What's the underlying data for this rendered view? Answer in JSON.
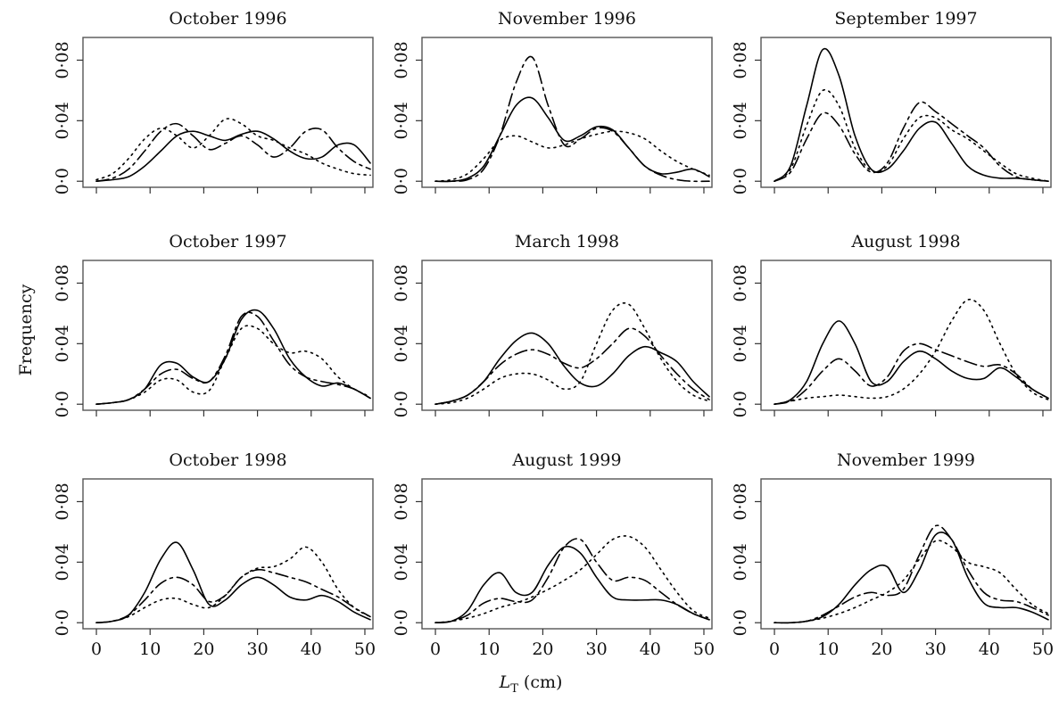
{
  "chart_data": [
    {
      "type": "line",
      "title": "October 1996",
      "x": [
        0,
        3,
        6,
        9,
        12,
        15,
        18,
        21,
        24,
        27,
        30,
        33,
        36,
        39,
        42,
        45,
        48,
        51
      ],
      "xlim": [
        -2.5,
        51.5
      ],
      "ylim": [
        -0.004,
        0.095
      ],
      "yticks": [
        {
          "value": 0,
          "label": "0·0"
        },
        {
          "value": 0.04,
          "label": "0·04"
        },
        {
          "value": 0.08,
          "label": "0·08"
        }
      ],
      "series": [
        {
          "color": "#000",
          "dash": "solid",
          "values": [
            0,
            0.001,
            0.003,
            0.01,
            0.02,
            0.03,
            0.033,
            0.03,
            0.027,
            0.031,
            0.033,
            0.028,
            0.02,
            0.015,
            0.016,
            0.024,
            0.024,
            0.012
          ]
        },
        {
          "color": "#000",
          "dash": "dashed",
          "values": [
            0,
            0.002,
            0.008,
            0.02,
            0.033,
            0.038,
            0.03,
            0.021,
            0.025,
            0.03,
            0.024,
            0.016,
            0.022,
            0.033,
            0.034,
            0.022,
            0.013,
            0.008
          ]
        },
        {
          "color": "#000",
          "dash": "dotted",
          "values": [
            0.001,
            0.005,
            0.015,
            0.028,
            0.035,
            0.03,
            0.022,
            0.03,
            0.041,
            0.038,
            0.03,
            0.027,
            0.022,
            0.018,
            0.012,
            0.008,
            0.005,
            0.004
          ]
        }
      ]
    },
    {
      "type": "line",
      "title": "November 1996",
      "x": [
        0,
        3,
        6,
        9,
        12,
        15,
        18,
        21,
        24,
        27,
        30,
        33,
        36,
        39,
        42,
        45,
        48,
        51
      ],
      "xlim": [
        -2.5,
        51.5
      ],
      "ylim": [
        -0.004,
        0.095
      ],
      "yticks": [
        {
          "value": 0,
          "label": "0·0"
        },
        {
          "value": 0.04,
          "label": "0·04"
        },
        {
          "value": 0.08,
          "label": "0·08"
        }
      ],
      "series": [
        {
          "color": "#000",
          "dash": "solid",
          "values": [
            0,
            0,
            0.002,
            0.01,
            0.03,
            0.05,
            0.055,
            0.042,
            0.027,
            0.03,
            0.036,
            0.034,
            0.022,
            0.01,
            0.005,
            0.006,
            0.008,
            0.003
          ]
        },
        {
          "color": "#000",
          "dash": "dashed",
          "values": [
            0,
            0,
            0.001,
            0.008,
            0.03,
            0.065,
            0.082,
            0.05,
            0.024,
            0.028,
            0.035,
            0.033,
            0.022,
            0.01,
            0.004,
            0.001,
            0,
            0
          ]
        },
        {
          "color": "#000",
          "dash": "dotted",
          "values": [
            0,
            0.001,
            0.005,
            0.015,
            0.027,
            0.03,
            0.026,
            0.022,
            0.024,
            0.028,
            0.031,
            0.033,
            0.032,
            0.028,
            0.02,
            0.013,
            0.008,
            0.004
          ]
        }
      ]
    },
    {
      "type": "line",
      "title": "September 1997",
      "x": [
        0,
        3,
        6,
        9,
        12,
        15,
        18,
        21,
        24,
        27,
        30,
        33,
        36,
        39,
        42,
        45,
        48,
        51
      ],
      "xlim": [
        -2.5,
        51.5
      ],
      "ylim": [
        -0.004,
        0.095
      ],
      "yticks": [
        {
          "value": 0,
          "label": "0·0"
        },
        {
          "value": 0.04,
          "label": "0·04"
        },
        {
          "value": 0.08,
          "label": "0·08"
        }
      ],
      "series": [
        {
          "color": "#000",
          "dash": "solid",
          "values": [
            0,
            0.01,
            0.05,
            0.087,
            0.07,
            0.03,
            0.008,
            0.008,
            0.02,
            0.035,
            0.039,
            0.025,
            0.01,
            0.004,
            0.002,
            0.002,
            0.001,
            0
          ]
        },
        {
          "color": "#000",
          "dash": "dashed",
          "values": [
            0,
            0.006,
            0.028,
            0.045,
            0.037,
            0.018,
            0.006,
            0.012,
            0.035,
            0.052,
            0.046,
            0.038,
            0.03,
            0.022,
            0.01,
            0.003,
            0.001,
            0
          ]
        },
        {
          "color": "#000",
          "dash": "dotted",
          "values": [
            0,
            0.008,
            0.037,
            0.06,
            0.05,
            0.022,
            0.007,
            0.01,
            0.028,
            0.042,
            0.042,
            0.034,
            0.028,
            0.02,
            0.012,
            0.005,
            0.002,
            0
          ]
        }
      ]
    },
    {
      "type": "line",
      "title": "October 1997",
      "x": [
        0,
        3,
        6,
        9,
        12,
        15,
        18,
        21,
        24,
        27,
        30,
        33,
        36,
        39,
        42,
        45,
        48,
        51
      ],
      "xlim": [
        -2.5,
        51.5
      ],
      "ylim": [
        -0.004,
        0.095
      ],
      "yticks": [
        {
          "value": 0,
          "label": "0·0"
        },
        {
          "value": 0.04,
          "label": "0·04"
        },
        {
          "value": 0.08,
          "label": "0·08"
        }
      ],
      "series": [
        {
          "color": "#000",
          "dash": "solid",
          "values": [
            0,
            0.001,
            0.003,
            0.01,
            0.026,
            0.027,
            0.018,
            0.015,
            0.03,
            0.056,
            0.062,
            0.05,
            0.03,
            0.018,
            0.012,
            0.014,
            0.01,
            0.004
          ]
        },
        {
          "color": "#000",
          "dash": "dashed",
          "values": [
            0,
            0.001,
            0.003,
            0.01,
            0.02,
            0.023,
            0.017,
            0.015,
            0.032,
            0.058,
            0.058,
            0.042,
            0.026,
            0.018,
            0.015,
            0.013,
            0.01,
            0.004
          ]
        },
        {
          "color": "#000",
          "dash": "dotted",
          "values": [
            0,
            0.001,
            0.003,
            0.008,
            0.016,
            0.016,
            0.008,
            0.009,
            0.03,
            0.05,
            0.05,
            0.04,
            0.034,
            0.035,
            0.03,
            0.018,
            0.01,
            0.005
          ]
        }
      ]
    },
    {
      "type": "line",
      "title": "March 1998",
      "x": [
        0,
        3,
        6,
        9,
        12,
        15,
        18,
        21,
        24,
        27,
        30,
        33,
        36,
        39,
        42,
        45,
        48,
        51
      ],
      "xlim": [
        -2.5,
        51.5
      ],
      "ylim": [
        -0.004,
        0.095
      ],
      "yticks": [
        {
          "value": 0,
          "label": "0·0"
        },
        {
          "value": 0.04,
          "label": "0·04"
        },
        {
          "value": 0.08,
          "label": "0·08"
        }
      ],
      "series": [
        {
          "color": "#000",
          "dash": "solid",
          "values": [
            0,
            0.002,
            0.006,
            0.015,
            0.03,
            0.042,
            0.047,
            0.04,
            0.025,
            0.014,
            0.012,
            0.02,
            0.032,
            0.038,
            0.034,
            0.028,
            0.015,
            0.005
          ]
        },
        {
          "color": "#000",
          "dash": "dashed",
          "values": [
            0,
            0.002,
            0.006,
            0.015,
            0.026,
            0.033,
            0.036,
            0.033,
            0.027,
            0.024,
            0.03,
            0.04,
            0.05,
            0.045,
            0.032,
            0.02,
            0.01,
            0.003
          ]
        },
        {
          "color": "#000",
          "dash": "dotted",
          "values": [
            0,
            0.001,
            0.004,
            0.01,
            0.017,
            0.02,
            0.02,
            0.016,
            0.01,
            0.015,
            0.04,
            0.062,
            0.066,
            0.05,
            0.03,
            0.015,
            0.006,
            0.002
          ]
        }
      ]
    },
    {
      "type": "line",
      "title": "August 1998",
      "x": [
        0,
        3,
        6,
        9,
        12,
        15,
        18,
        21,
        24,
        27,
        30,
        33,
        36,
        39,
        42,
        45,
        48,
        51
      ],
      "xlim": [
        -2.5,
        51.5
      ],
      "ylim": [
        -0.004,
        0.095
      ],
      "yticks": [
        {
          "value": 0,
          "label": "0·0"
        },
        {
          "value": 0.04,
          "label": "0·04"
        },
        {
          "value": 0.08,
          "label": "0·08"
        }
      ],
      "series": [
        {
          "color": "#000",
          "dash": "solid",
          "values": [
            0,
            0.003,
            0.015,
            0.04,
            0.055,
            0.04,
            0.015,
            0.015,
            0.028,
            0.035,
            0.03,
            0.022,
            0.017,
            0.017,
            0.024,
            0.018,
            0.01,
            0.004
          ]
        },
        {
          "color": "#000",
          "dash": "dashed",
          "values": [
            0,
            0.002,
            0.01,
            0.022,
            0.03,
            0.022,
            0.012,
            0.018,
            0.035,
            0.04,
            0.036,
            0.032,
            0.028,
            0.025,
            0.026,
            0.02,
            0.01,
            0.004
          ]
        },
        {
          "color": "#000",
          "dash": "dotted",
          "values": [
            0,
            0.002,
            0.004,
            0.005,
            0.006,
            0.005,
            0.004,
            0.005,
            0.01,
            0.02,
            0.035,
            0.055,
            0.069,
            0.062,
            0.04,
            0.02,
            0.008,
            0.003
          ]
        }
      ]
    },
    {
      "type": "line",
      "title": "October 1998",
      "x": [
        0,
        3,
        6,
        9,
        12,
        15,
        18,
        21,
        24,
        27,
        30,
        33,
        36,
        39,
        42,
        45,
        48,
        51
      ],
      "xlim": [
        -2.5,
        51.5
      ],
      "ylim": [
        -0.004,
        0.095
      ],
      "xticks": [
        0,
        10,
        20,
        30,
        40,
        50
      ],
      "yticks": [
        {
          "value": 0,
          "label": "0·0"
        },
        {
          "value": 0.04,
          "label": "0·04"
        },
        {
          "value": 0.08,
          "label": "0·08"
        }
      ],
      "series": [
        {
          "color": "#000",
          "dash": "solid",
          "values": [
            0,
            0.001,
            0.005,
            0.02,
            0.042,
            0.053,
            0.035,
            0.012,
            0.015,
            0.025,
            0.03,
            0.025,
            0.017,
            0.015,
            0.018,
            0.014,
            0.007,
            0.002
          ]
        },
        {
          "color": "#000",
          "dash": "dashed",
          "values": [
            0,
            0.001,
            0.005,
            0.015,
            0.026,
            0.03,
            0.025,
            0.014,
            0.018,
            0.03,
            0.035,
            0.033,
            0.03,
            0.027,
            0.022,
            0.017,
            0.01,
            0.004
          ]
        },
        {
          "color": "#000",
          "dash": "dotted",
          "values": [
            0,
            0.001,
            0.004,
            0.01,
            0.015,
            0.016,
            0.012,
            0.01,
            0.018,
            0.03,
            0.036,
            0.037,
            0.042,
            0.05,
            0.04,
            0.022,
            0.01,
            0.004
          ]
        }
      ]
    },
    {
      "type": "line",
      "title": "August 1999",
      "x": [
        0,
        3,
        6,
        9,
        12,
        15,
        18,
        21,
        24,
        27,
        30,
        33,
        36,
        39,
        42,
        45,
        48,
        51
      ],
      "xlim": [
        -2.5,
        51.5
      ],
      "ylim": [
        -0.004,
        0.095
      ],
      "xticks": [
        0,
        10,
        20,
        30,
        40,
        50
      ],
      "yticks": [
        {
          "value": 0,
          "label": "0·0"
        },
        {
          "value": 0.04,
          "label": "0·04"
        },
        {
          "value": 0.08,
          "label": "0·08"
        }
      ],
      "series": [
        {
          "color": "#000",
          "dash": "solid",
          "values": [
            0,
            0.001,
            0.008,
            0.025,
            0.033,
            0.02,
            0.02,
            0.038,
            0.05,
            0.046,
            0.03,
            0.017,
            0.015,
            0.015,
            0.015,
            0.012,
            0.006,
            0.002
          ]
        },
        {
          "color": "#000",
          "dash": "dashed",
          "values": [
            0,
            0.001,
            0.005,
            0.013,
            0.016,
            0.014,
            0.015,
            0.03,
            0.05,
            0.055,
            0.04,
            0.028,
            0.03,
            0.028,
            0.02,
            0.012,
            0.006,
            0.002
          ]
        },
        {
          "color": "#000",
          "dash": "dotted",
          "values": [
            0,
            0.001,
            0.003,
            0.006,
            0.01,
            0.013,
            0.017,
            0.022,
            0.028,
            0.035,
            0.045,
            0.055,
            0.057,
            0.05,
            0.035,
            0.02,
            0.008,
            0.003
          ]
        }
      ]
    },
    {
      "type": "line",
      "title": "November 1999",
      "x": [
        0,
        3,
        6,
        9,
        12,
        15,
        18,
        21,
        24,
        27,
        30,
        33,
        36,
        39,
        42,
        45,
        48,
        51
      ],
      "xlim": [
        -2.5,
        51.5
      ],
      "ylim": [
        -0.004,
        0.095
      ],
      "xticks": [
        0,
        10,
        20,
        30,
        40,
        50
      ],
      "yticks": [
        {
          "value": 0,
          "label": "0·0"
        },
        {
          "value": 0.04,
          "label": "0·04"
        },
        {
          "value": 0.08,
          "label": "0·08"
        }
      ],
      "series": [
        {
          "color": "#000",
          "dash": "solid",
          "values": [
            0,
            0,
            0.001,
            0.004,
            0.012,
            0.025,
            0.035,
            0.037,
            0.02,
            0.035,
            0.058,
            0.055,
            0.03,
            0.013,
            0.01,
            0.01,
            0.007,
            0.002
          ]
        },
        {
          "color": "#000",
          "dash": "dashed",
          "values": [
            0,
            0,
            0.001,
            0.005,
            0.011,
            0.017,
            0.02,
            0.018,
            0.022,
            0.045,
            0.064,
            0.055,
            0.035,
            0.02,
            0.015,
            0.014,
            0.01,
            0.005
          ]
        },
        {
          "color": "#000",
          "dash": "dotted",
          "values": [
            0,
            0,
            0.001,
            0.003,
            0.006,
            0.01,
            0.015,
            0.02,
            0.028,
            0.042,
            0.054,
            0.05,
            0.04,
            0.037,
            0.033,
            0.022,
            0.012,
            0.006
          ]
        }
      ]
    }
  ],
  "ylabel": "Frequency",
  "xlabel": [
    "L",
    "T",
    "(cm)"
  ]
}
